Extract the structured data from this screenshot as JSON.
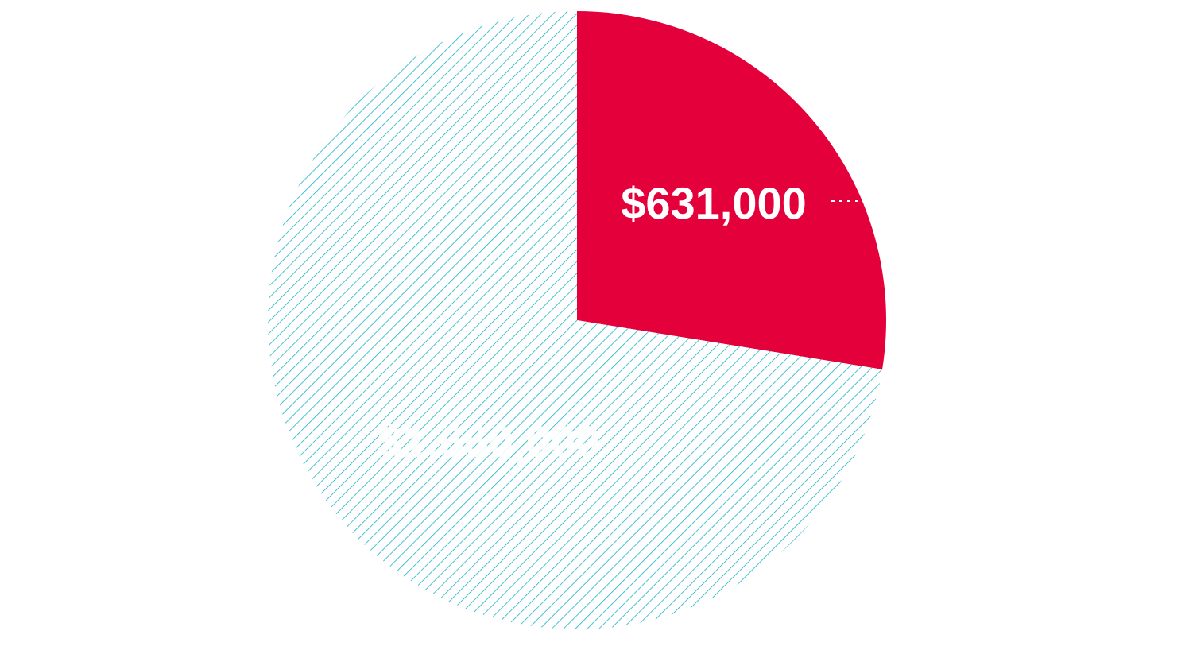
{
  "chart_data": {
    "type": "pie",
    "start_angle": "12 o'clock",
    "direction": "clockwise",
    "slices": [
      {
        "label": "$631,000",
        "value": 631000,
        "fill": "#e4003b",
        "pattern": "solid",
        "label_color": "#ffffff",
        "label_visible": true
      },
      {
        "label": "$1,660,000",
        "value": 1660000,
        "fill": "#ffffff",
        "pattern": "diagonal-hatch",
        "hatch_color": "#1ab3c8",
        "label_color": "#ffffff",
        "label_visible": false
      }
    ]
  }
}
